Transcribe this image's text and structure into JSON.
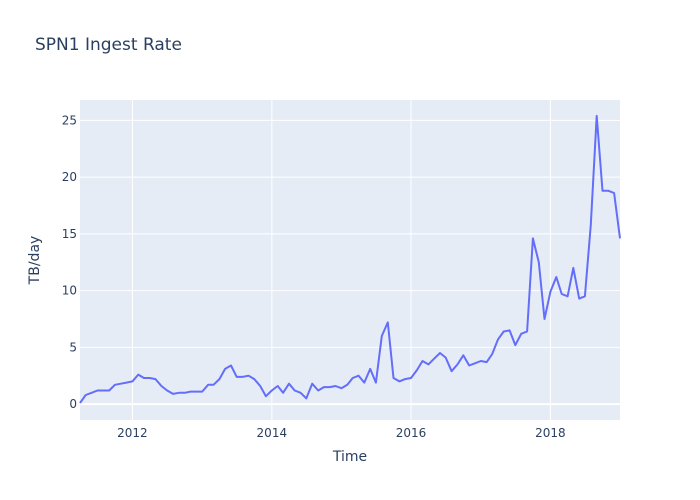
{
  "chart_data": {
    "type": "line",
    "title": "SPN1 Ingest Rate",
    "xlabel": "Time",
    "ylabel": "TB/day",
    "xlim": [
      "2011-04-01",
      "2019-01-01"
    ],
    "ylim": [
      -1.4,
      26.8
    ],
    "x_ticks": [
      "2012",
      "2014",
      "2016",
      "2018"
    ],
    "y_ticks": [
      0,
      5,
      10,
      15,
      20,
      25
    ],
    "grid": true,
    "legend": "none",
    "colors": {
      "plot_bg": "#e5ecf6",
      "series": "#636efa",
      "text": "#2a3f5f"
    },
    "series": [
      {
        "x": [
          "2011-04-01",
          "2011-05-01",
          "2011-06-01",
          "2011-07-01",
          "2011-08-01",
          "2011-09-01",
          "2011-10-01",
          "2011-11-01",
          "2011-12-01",
          "2012-01-01",
          "2012-02-01",
          "2012-03-01",
          "2012-04-01",
          "2012-05-01",
          "2012-06-01",
          "2012-07-01",
          "2012-08-01",
          "2012-09-01",
          "2012-10-01",
          "2012-11-01",
          "2012-12-01",
          "2013-01-01",
          "2013-02-01",
          "2013-03-01",
          "2013-04-01",
          "2013-05-01",
          "2013-06-01",
          "2013-07-01",
          "2013-08-01",
          "2013-09-01",
          "2013-10-01",
          "2013-11-01",
          "2013-12-01",
          "2014-01-01",
          "2014-02-01",
          "2014-03-01",
          "2014-04-01",
          "2014-05-01",
          "2014-06-01",
          "2014-07-01",
          "2014-08-01",
          "2014-09-01",
          "2014-10-01",
          "2014-11-01",
          "2014-12-01",
          "2015-01-01",
          "2015-02-01",
          "2015-03-01",
          "2015-04-01",
          "2015-05-01",
          "2015-06-01",
          "2015-07-01",
          "2015-08-01",
          "2015-09-01",
          "2015-10-01",
          "2015-11-01",
          "2015-12-01",
          "2016-01-01",
          "2016-02-01",
          "2016-03-01",
          "2016-04-01",
          "2016-05-01",
          "2016-06-01",
          "2016-07-01",
          "2016-08-01",
          "2016-09-01",
          "2016-10-01",
          "2016-11-01",
          "2016-12-01",
          "2017-01-01",
          "2017-02-01",
          "2017-03-01",
          "2017-04-01",
          "2017-05-01",
          "2017-06-01",
          "2017-07-01",
          "2017-08-01",
          "2017-09-01",
          "2017-10-01",
          "2017-11-01",
          "2017-12-01",
          "2018-01-01",
          "2018-02-01",
          "2018-03-01",
          "2018-04-01",
          "2018-05-01",
          "2018-06-01",
          "2018-07-01",
          "2018-08-01",
          "2018-09-01",
          "2018-10-01",
          "2018-11-01",
          "2018-12-01",
          "2019-01-01"
        ],
        "y": [
          0.1,
          0.8,
          1.0,
          1.2,
          1.2,
          1.2,
          1.7,
          1.8,
          1.9,
          2.0,
          2.6,
          2.3,
          2.3,
          2.2,
          1.6,
          1.2,
          0.9,
          1.0,
          1.0,
          1.1,
          1.1,
          1.1,
          1.7,
          1.7,
          2.2,
          3.1,
          3.4,
          2.4,
          2.4,
          2.5,
          2.2,
          1.6,
          0.7,
          1.2,
          1.6,
          1.0,
          1.8,
          1.2,
          1.0,
          0.5,
          1.8,
          1.2,
          1.5,
          1.5,
          1.6,
          1.4,
          1.7,
          2.3,
          2.5,
          1.9,
          3.1,
          1.9,
          6.0,
          7.2,
          2.3,
          2.0,
          2.2,
          2.3,
          3.0,
          3.8,
          3.5,
          4.0,
          4.5,
          4.1,
          2.9,
          3.5,
          4.3,
          3.4,
          3.6,
          3.8,
          3.7,
          4.4,
          5.7,
          6.4,
          6.5,
          5.2,
          6.2,
          6.4,
          14.6,
          12.5,
          7.5,
          9.9,
          11.2,
          9.7,
          9.5,
          12.0,
          9.3,
          9.5,
          15.8,
          25.4,
          18.8,
          18.8,
          18.6,
          14.6
        ]
      }
    ]
  }
}
